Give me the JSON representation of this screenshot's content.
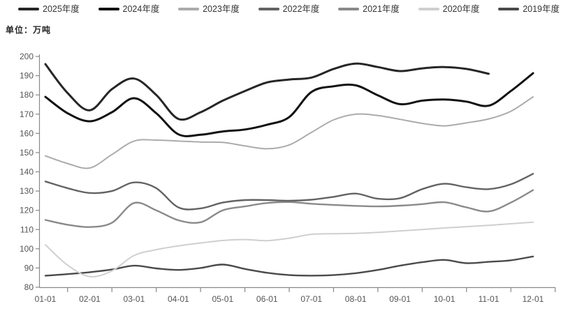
{
  "unit_label": "单位：万吨",
  "legend_items": [
    {
      "label": "2025年度",
      "color": "#262626"
    },
    {
      "label": "2024年度",
      "color": "#111111"
    },
    {
      "label": "2023年度",
      "color": "#ababab"
    },
    {
      "label": "2022年度",
      "color": "#636363"
    },
    {
      "label": "2021年度",
      "color": "#8a8a8a"
    },
    {
      "label": "2020年度",
      "color": "#cfcfcf"
    },
    {
      "label": "2019年度",
      "color": "#4a4a4a"
    }
  ],
  "chart_data": {
    "type": "line",
    "title": "",
    "xlabel": "",
    "ylabel": "万吨",
    "x_labels": [
      "01-01",
      "02-01",
      "03-01",
      "04-01",
      "05-01",
      "06-01",
      "07-01",
      "08-01",
      "09-01",
      "10-01",
      "11-01",
      "12-01"
    ],
    "points_per_month": 2,
    "ylim": [
      80,
      200
    ],
    "y_ticks": [
      80,
      90,
      100,
      110,
      120,
      130,
      140,
      150,
      160,
      170,
      180,
      190,
      200
    ],
    "grid": false,
    "legend_position": "top",
    "series": [
      {
        "name": "2019年度",
        "color": "#4a4a4a",
        "width": 2.4,
        "values": [
          86,
          86.8,
          87.8,
          89.2,
          91.2,
          89.8,
          89,
          90,
          91.8,
          89.5,
          87.5,
          86.3,
          86,
          86.3,
          87.3,
          89,
          91.2,
          93,
          94.2,
          92.5,
          93.2,
          94,
          96
        ]
      },
      {
        "name": "2020年度",
        "color": "#cfcfcf",
        "width": 2.0,
        "values": [
          102,
          91.5,
          85.5,
          88.5,
          96.5,
          99.5,
          101.5,
          103,
          104.3,
          104.8,
          104.2,
          105.5,
          107.5,
          107.8,
          108,
          108.5,
          109.3,
          110,
          110.8,
          111.5,
          112.2,
          113,
          113.8
        ]
      },
      {
        "name": "2021年度",
        "color": "#8a8a8a",
        "width": 2.4,
        "values": [
          115,
          112.5,
          111.3,
          113.5,
          123.8,
          120,
          114.8,
          113.8,
          120,
          122,
          123.8,
          124.3,
          123.4,
          122.8,
          122.3,
          122,
          122.4,
          123.2,
          124.2,
          121.5,
          119.4,
          124,
          130.5
        ]
      },
      {
        "name": "2022年度",
        "color": "#636363",
        "width": 2.4,
        "values": [
          135,
          131.5,
          129,
          130,
          134.5,
          131.5,
          121.5,
          121,
          124,
          125.3,
          125.3,
          125,
          125.5,
          127,
          128.7,
          126,
          126.3,
          131,
          133.8,
          132,
          131,
          133.5,
          139
        ]
      },
      {
        "name": "2023年度",
        "color": "#ababab",
        "width": 2.0,
        "values": [
          148.3,
          144.3,
          142,
          149,
          156,
          156.5,
          156,
          155.5,
          155.3,
          153.5,
          152,
          154,
          160.5,
          167,
          170,
          169.3,
          167.3,
          165.2,
          163.9,
          165.5,
          167.5,
          171.5,
          179
        ]
      },
      {
        "name": "2024年度",
        "color": "#111111",
        "width": 3.0,
        "values": [
          179,
          170.5,
          166.3,
          171,
          178.3,
          170.5,
          159.5,
          159.3,
          161,
          162,
          164.5,
          168.5,
          181.5,
          184.5,
          185,
          179.8,
          175.2,
          177,
          177.6,
          176.5,
          174.4,
          182,
          191.3
        ]
      },
      {
        "name": "2025年度",
        "color": "#262626",
        "width": 3.0,
        "values": [
          196,
          181,
          172,
          183,
          188.5,
          180,
          167.5,
          171,
          177,
          182,
          186.5,
          188,
          189,
          193.5,
          196.3,
          194.5,
          192.4,
          193.8,
          194.5,
          193.5,
          191,
          null,
          null
        ]
      }
    ]
  }
}
